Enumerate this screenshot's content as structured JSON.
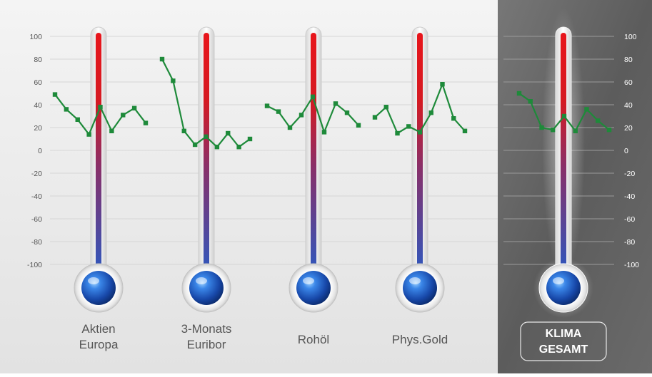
{
  "colors": {
    "series_line": "#1e8a3a",
    "series_marker": "#1e8a3a",
    "tube_top": "#e21b1b",
    "tube_bottom": "#2b5cc0",
    "bulb": "#1d57c9",
    "left_bg": "#ececec",
    "right_bg": "#5e5e5e"
  },
  "chart_data": {
    "type": "line",
    "ylim": [
      -100,
      100
    ],
    "y_ticks": [
      "100",
      "80",
      "60",
      "40",
      "20",
      "0",
      "-20",
      "-40",
      "-60",
      "-80",
      "-100"
    ],
    "grid": true,
    "panels": [
      {
        "label_lines": [
          "Aktien",
          "Europa"
        ],
        "values": [
          49,
          36,
          27,
          14,
          38,
          17,
          31,
          37,
          24
        ]
      },
      {
        "label_lines": [
          "3-Monats",
          "Euribor"
        ],
        "values": [
          80,
          61,
          17,
          5,
          12,
          3,
          15,
          3,
          10
        ]
      },
      {
        "label_lines": [
          "Rohöl"
        ],
        "values": [
          39,
          34,
          20,
          31,
          47,
          16,
          41,
          33,
          22
        ]
      },
      {
        "label_lines": [
          "Phys.Gold"
        ],
        "values": [
          29,
          38,
          15,
          21,
          16,
          33,
          58,
          28,
          17
        ]
      },
      {
        "label_lines": [
          "KLIMA",
          "GESAMT"
        ],
        "values": [
          50,
          43,
          20,
          18,
          30,
          17,
          36,
          26,
          18
        ]
      }
    ]
  }
}
